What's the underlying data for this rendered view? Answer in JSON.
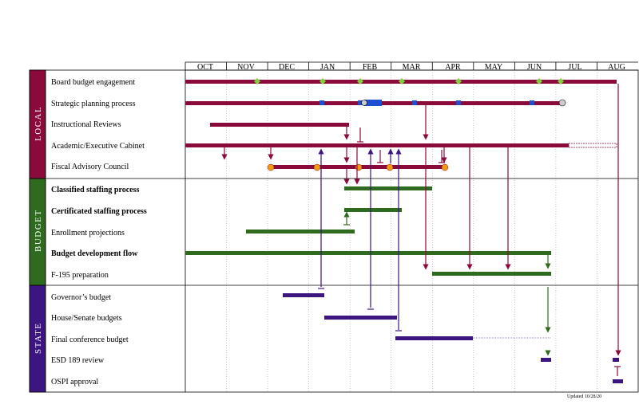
{
  "months": [
    "OCT",
    "NOV",
    "DEC",
    "JAN",
    "FEB",
    "MAR",
    "APR",
    "MAY",
    "JUN",
    "JUL",
    "AUG"
  ],
  "sections": [
    {
      "label": "LOCAL",
      "color": "#8B0A3C"
    },
    {
      "label": "BUDGET",
      "color": "#2E6B1E"
    },
    {
      "label": "STATE",
      "color": "#3C1580"
    }
  ],
  "tasks": [
    {
      "label": "Board budget  engagement",
      "bold": false
    },
    {
      "label": "Strategic planning process",
      "bold": false
    },
    {
      "label": "Instructional  Reviews",
      "bold": false
    },
    {
      "label": "Academic/Executive  Cabinet",
      "bold": false
    },
    {
      "label": "Fiscal  Advisory Council",
      "bold": false
    },
    {
      "label": "Classified staffing process",
      "bold": true
    },
    {
      "label": "Certificated staffing process",
      "bold": true
    },
    {
      "label": "Enrollment  projections",
      "bold": false
    },
    {
      "label": "Budget development flow",
      "bold": true
    },
    {
      "label": "F-195 preparation",
      "bold": false
    },
    {
      "label": "Governor’s budget",
      "bold": false
    },
    {
      "label": "House/Senate   budgets",
      "bold": false
    },
    {
      "label": "Final conference budget",
      "bold": false
    },
    {
      "label": "ESD  189 review",
      "bold": false
    },
    {
      "label": "OSPI approval",
      "bold": false
    }
  ],
  "colors": {
    "local": "#8B0A3C",
    "budget": "#2E6B1E",
    "state": "#3C1580",
    "milestone": "#7FD13B",
    "meeting": "#F39C12",
    "plan": "#1F4FD1"
  },
  "updated": "Updated     10/28/20"
}
